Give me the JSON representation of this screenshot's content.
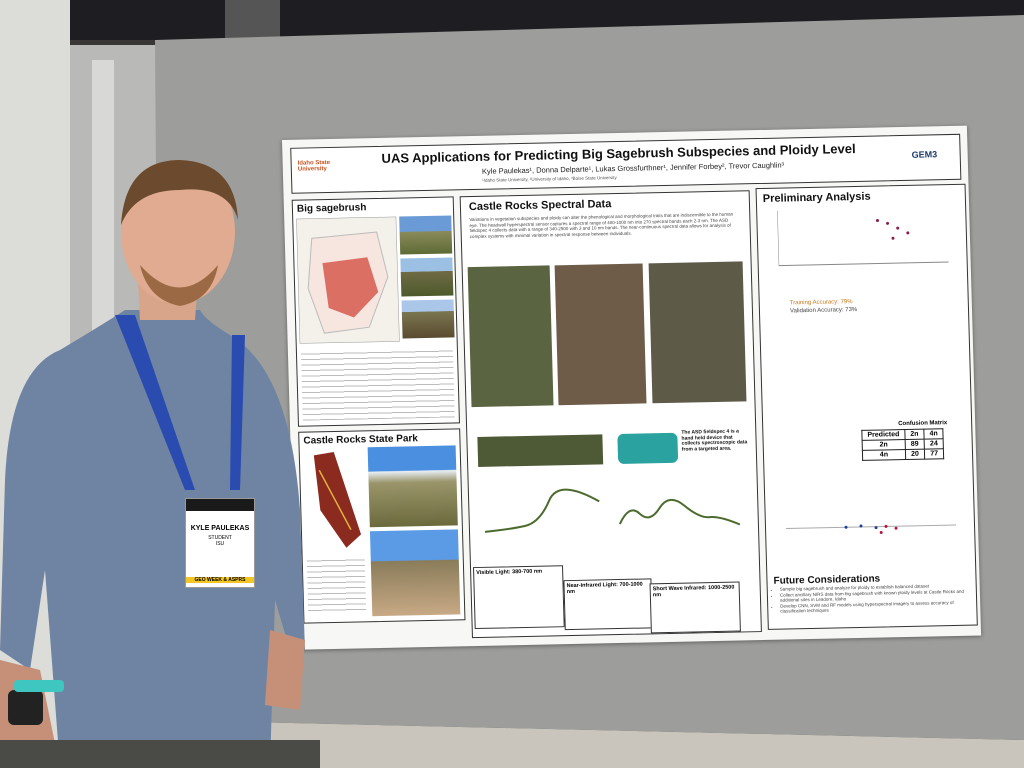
{
  "badge": {
    "name": "KYLE PAULEKAS",
    "role": "STUDENT",
    "org": "ISU",
    "event": "GEO WEEK & ASPRS"
  },
  "poster": {
    "logo_left": "Idaho State University",
    "title": "UAS Applications for Predicting Big Sagebrush Subspecies and Ploidy Level",
    "authors": "Kyle Paulekas¹, Donna Delparte¹, Lukas Grossfurthner¹, Jennifer Forbey², Trevor Caughlin³",
    "affiliations": "¹Idaho State University, ²University of Idaho, ³Boise State University",
    "logo_right": "GEM3",
    "big_sagebrush": {
      "heading": "Big sagebrush"
    },
    "state_park": {
      "heading": "Castle Rocks State Park"
    },
    "spectral": {
      "heading": "Castle Rocks Spectral Data",
      "intro": "Variations in vegetation subspecies and ploidy can alter the phenological and morphological traits that are indiscernible to the human eye. The headwall hyperspectral sensor captures a spectral range of 400-1000 nm into 270 spectral bands each 2-3 nm. The ASD fieldspec 4 collects data with a range of 340-2500 with 3 and 10 nm bands. The near-continuous spectral data allows for analysis of complex systems with minimal variation in spectral response between individuals.",
      "asd_note": "The ASD fieldspec 4 is a hand held device that collects spectroscopic data from a targeted area.",
      "bands": [
        "Visible Light: 380-700 nm",
        "Near-Infrared Light: 700-1000 nm",
        "Short Wave Infrared: 1000-2500 nm"
      ]
    },
    "preliminary": {
      "heading": "Preliminary Analysis",
      "training": "Training Accuracy: 79%",
      "validation": "Validation Accuracy: 73%",
      "matrix": {
        "title": "Confusion Matrix",
        "header": [
          "Predicted",
          "2n",
          "4n"
        ],
        "rows": [
          [
            "2n",
            "89",
            "24"
          ],
          [
            "4n",
            "20",
            "77"
          ]
        ]
      }
    },
    "future": {
      "heading": "Future Considerations",
      "items": [
        "Sample big sagebrush and analyze for ploidy to establish balanced dataset",
        "Collect ancillary NIRS data from big sagebrush with known ploidy levels at Castle Rocks and additional sites in Leadore, Idaho",
        "Develop CNN, SVM and RF models using hyperspectral imagery to assess accuracy of classification techniques"
      ]
    }
  }
}
